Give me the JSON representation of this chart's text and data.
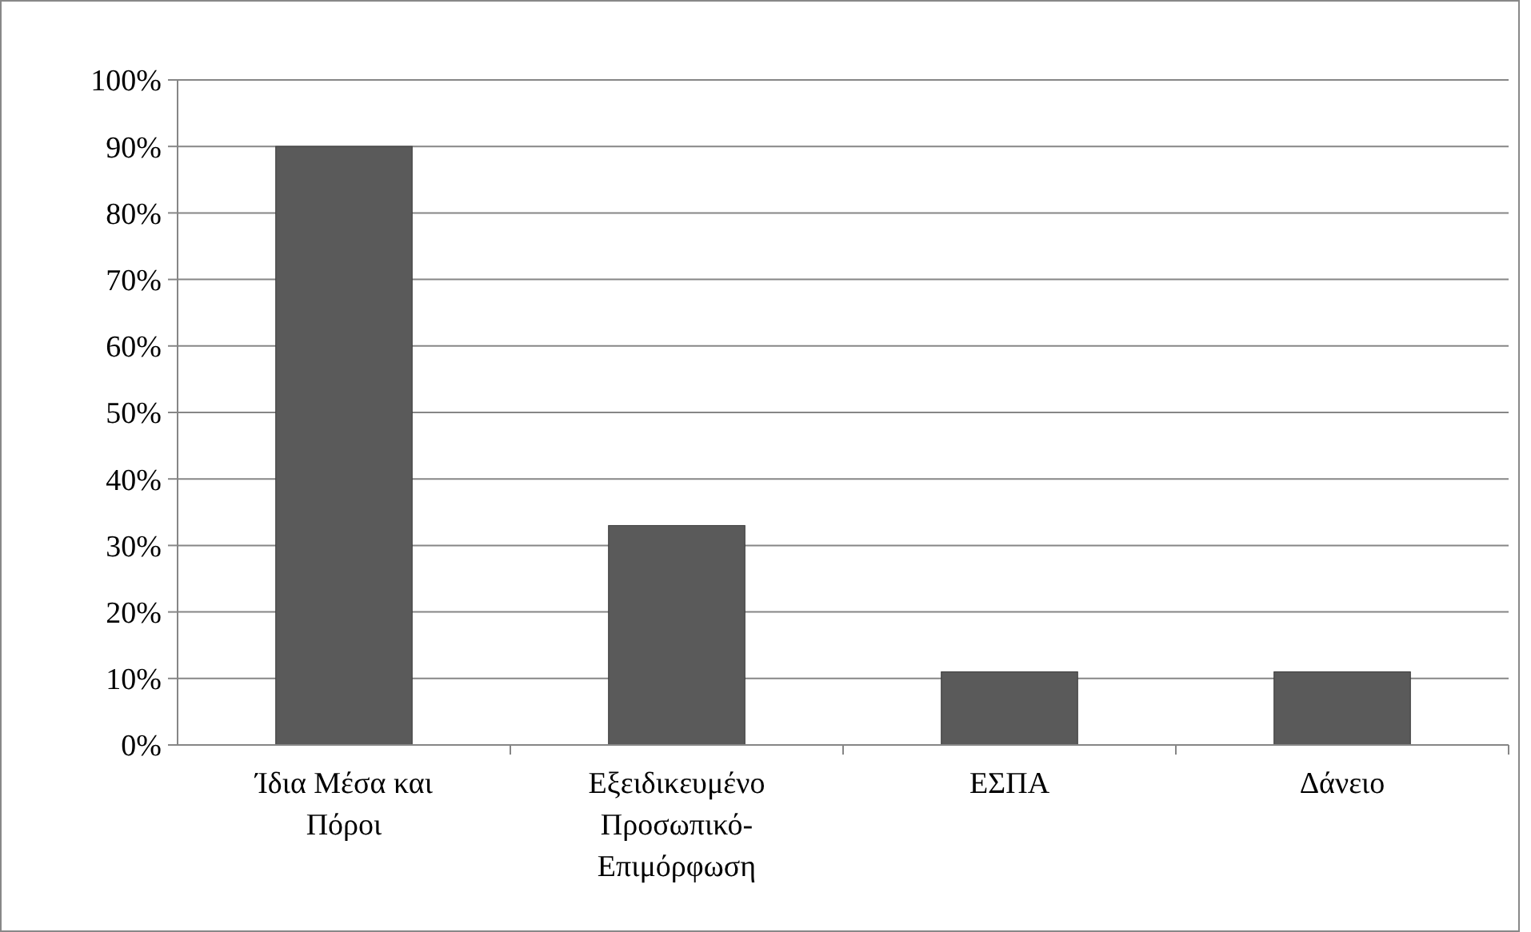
{
  "chart_data": {
    "type": "bar",
    "categories": [
      "Ίδια Μέσα και Πόροι",
      "Εξειδικευμένο Προσωπικό-Επιμόρφωση",
      "ΕΣΠΑ",
      "Δάνειο"
    ],
    "values": [
      90,
      33,
      11,
      11
    ],
    "color": "#5a5a5a",
    "ylim": [
      0,
      100
    ],
    "yticks": [
      {
        "value": 0,
        "label": "0%"
      },
      {
        "value": 10,
        "label": "10%"
      },
      {
        "value": 20,
        "label": "20%"
      },
      {
        "value": 30,
        "label": "30%"
      },
      {
        "value": 40,
        "label": "40%"
      },
      {
        "value": 50,
        "label": "50%"
      },
      {
        "value": 60,
        "label": "60%"
      },
      {
        "value": 70,
        "label": "70%"
      },
      {
        "value": 80,
        "label": "80%"
      },
      {
        "value": 90,
        "label": "90%"
      },
      {
        "value": 100,
        "label": "100%"
      }
    ],
    "grid": "y"
  }
}
